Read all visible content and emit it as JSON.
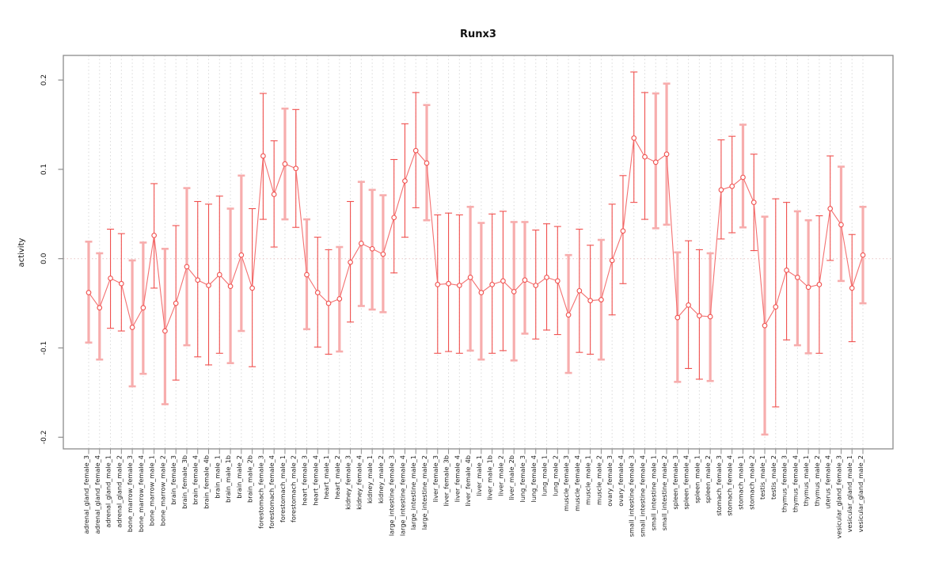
{
  "page": {
    "title": "Runx3"
  },
  "chart_data": {
    "type": "scatter",
    "title": "Runx3",
    "xlabel": "",
    "ylabel": "activity",
    "legend": "none",
    "grid": "vertical dotted line per category; dotted horizontal line at 0",
    "point_marker": "open-circle",
    "line": "points connected by straight red segments",
    "error_bars": true,
    "ylim": [
      -0.22,
      0.225
    ],
    "yticks": [
      "0.2",
      "0.1",
      "0.0",
      "-0.1",
      "-0.2"
    ],
    "ytick_values": [
      0.2,
      0.1,
      0.0,
      -0.1,
      -0.2
    ],
    "colors": {
      "point": "#f0504e",
      "line": "#f47070",
      "bar_thin": "#f0504e",
      "bar_wide": "#f7adad",
      "grid": "#d9d9d9",
      "zero_line": "#e8c4c4",
      "axis": "#8c8c8c",
      "text": "#111111"
    },
    "categories": [
      "adrenal_gland_female_3",
      "adrenal_gland_female_4",
      "adrenal_gland_male_1",
      "adrenal_gland_male_2",
      "bone_marrow_female_3",
      "bone_marrow_female_4",
      "bone_marrow_male_1",
      "bone_marrow_male_2",
      "brain_female_3",
      "brain_female_3b",
      "brain_female_4",
      "brain_female_4b",
      "brain_male_1",
      "brain_male_1b",
      "brain_male_2",
      "brain_male_2b",
      "forestomach_female_3",
      "forestomach_female_4",
      "forestomach_male_1",
      "forestomach_male_2",
      "heart_female_3",
      "heart_female_4",
      "heart_male_1",
      "heart_male_2",
      "kidney_female_3",
      "kidney_female_4",
      "kidney_male_1",
      "kidney_male_2",
      "large_intestine_female_3",
      "large_intestine_female_4",
      "large_intestine_male_1",
      "large_intestine_male_2",
      "liver_female_3",
      "liver_female_3b",
      "liver_female_4",
      "liver_female_4b",
      "liver_male_1",
      "liver_male_1b",
      "liver_male_2",
      "liver_male_2b",
      "lung_female_3",
      "lung_female_4",
      "lung_male_1",
      "lung_male_2",
      "muscle_female_3",
      "muscle_female_4",
      "muscle_male_1",
      "muscle_male_2",
      "ovary_female_3",
      "ovary_female_4",
      "small_intestine_female_3",
      "small_intestine_female_4",
      "small_intestine_male_1",
      "small_intestine_male_2",
      "spleen_female_3",
      "spleen_female_4",
      "spleen_male_1",
      "spleen_male_2",
      "stomach_female_3",
      "stomach_female_4",
      "stomach_male_1",
      "stomach_male_2",
      "testis_male_1",
      "testis_male_2",
      "thymus_female_3",
      "thymus_female_4",
      "thymus_male_1",
      "thymus_male_2",
      "uterus_female_4",
      "vesicular_gland_female_3",
      "vesicular_gland_male_1",
      "vesicular_gland_male_2"
    ],
    "series": [
      {
        "name": "Runx3 activity",
        "values": [
          -0.038,
          -0.055,
          -0.022,
          -0.028,
          -0.077,
          -0.055,
          0.026,
          -0.081,
          -0.05,
          -0.009,
          -0.024,
          -0.03,
          -0.018,
          -0.031,
          0.004,
          -0.033,
          0.115,
          0.072,
          0.106,
          0.101,
          -0.018,
          -0.038,
          -0.05,
          -0.045,
          -0.004,
          0.017,
          0.011,
          0.005,
          0.046,
          0.087,
          0.121,
          0.107,
          -0.029,
          -0.028,
          -0.03,
          -0.021,
          -0.038,
          -0.029,
          -0.025,
          -0.037,
          -0.024,
          -0.03,
          -0.021,
          -0.025,
          -0.063,
          -0.036,
          -0.047,
          -0.046,
          -0.002,
          0.031,
          0.135,
          0.114,
          0.108,
          0.117,
          -0.066,
          -0.052,
          -0.064,
          -0.065,
          0.077,
          0.081,
          0.091,
          0.063,
          -0.075,
          -0.054,
          -0.013,
          -0.021,
          -0.032,
          -0.029,
          0.056,
          0.038,
          -0.033,
          0.004
        ],
        "err_low": [
          -0.094,
          -0.113,
          -0.078,
          -0.081,
          -0.143,
          -0.129,
          -0.033,
          -0.163,
          -0.136,
          -0.097,
          -0.11,
          -0.119,
          -0.106,
          -0.117,
          -0.081,
          -0.121,
          0.044,
          0.013,
          0.044,
          0.035,
          -0.079,
          -0.099,
          -0.107,
          -0.104,
          -0.071,
          -0.053,
          -0.057,
          -0.06,
          -0.016,
          0.024,
          0.057,
          0.043,
          -0.106,
          -0.104,
          -0.106,
          -0.103,
          -0.113,
          -0.106,
          -0.103,
          -0.114,
          -0.084,
          -0.09,
          -0.08,
          -0.085,
          -0.128,
          -0.105,
          -0.107,
          -0.113,
          -0.063,
          -0.028,
          0.063,
          0.044,
          0.034,
          0.038,
          -0.138,
          -0.123,
          -0.135,
          -0.137,
          0.022,
          0.029,
          0.035,
          0.009,
          -0.197,
          -0.166,
          -0.091,
          -0.097,
          -0.106,
          -0.106,
          -0.002,
          -0.025,
          -0.093,
          -0.05
        ],
        "err_high": [
          0.019,
          0.006,
          0.033,
          0.028,
          -0.002,
          0.018,
          0.084,
          0.011,
          0.037,
          0.079,
          0.064,
          0.061,
          0.07,
          0.056,
          0.093,
          0.056,
          0.185,
          0.132,
          0.168,
          0.167,
          0.044,
          0.024,
          0.01,
          0.013,
          0.064,
          0.086,
          0.077,
          0.071,
          0.111,
          0.151,
          0.186,
          0.172,
          0.049,
          0.051,
          0.049,
          0.058,
          0.04,
          0.05,
          0.053,
          0.041,
          0.041,
          0.032,
          0.039,
          0.036,
          0.004,
          0.033,
          0.015,
          0.021,
          0.061,
          0.093,
          0.209,
          0.186,
          0.185,
          0.196,
          0.007,
          0.02,
          0.01,
          0.006,
          0.133,
          0.137,
          0.15,
          0.117,
          0.047,
          0.067,
          0.063,
          0.053,
          0.043,
          0.048,
          0.115,
          0.103,
          0.027,
          0.058
        ],
        "bar_style": [
          "wide",
          "wide",
          "thin",
          "thin",
          "wide",
          "wide",
          "thin",
          "wide",
          "thin",
          "wide",
          "thin",
          "thin",
          "thin",
          "wide",
          "wide",
          "thin",
          "thin",
          "thin",
          "wide",
          "thin",
          "wide",
          "thin",
          "thin",
          "wide",
          "thin",
          "wide",
          "wide",
          "wide",
          "thin",
          "thin",
          "thin",
          "wide",
          "thin",
          "thin",
          "thin",
          "wide",
          "wide",
          "thin",
          "thin",
          "wide",
          "wide",
          "thin",
          "thin",
          "thin",
          "wide",
          "thin",
          "thin",
          "wide",
          "thin",
          "thin",
          "thin",
          "thin",
          "wide",
          "wide",
          "wide",
          "thin",
          "thin",
          "wide",
          "thin",
          "thin",
          "wide",
          "thin",
          "wide",
          "thin",
          "thin",
          "wide",
          "wide",
          "thin",
          "thin",
          "wide",
          "thin",
          "wide"
        ]
      }
    ]
  }
}
